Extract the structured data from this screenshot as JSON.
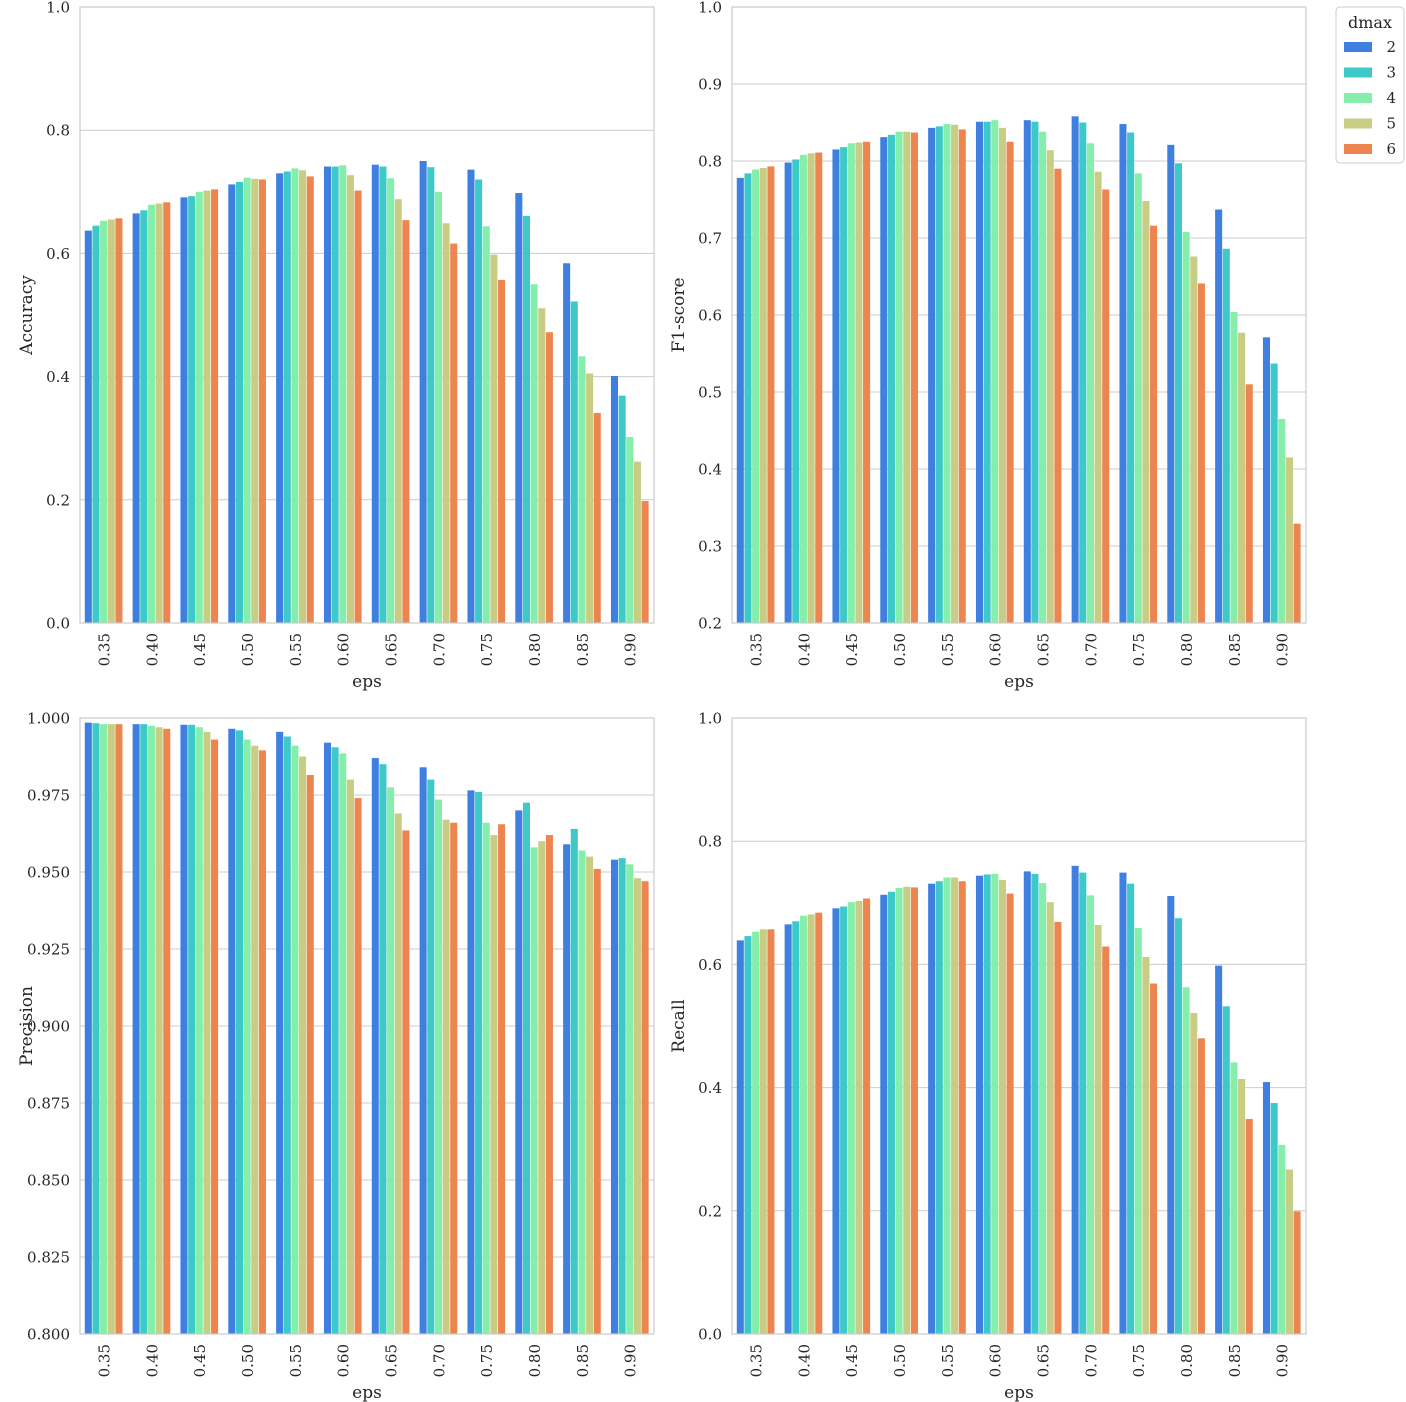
{
  "figure": {
    "legend": {
      "title": "dmax",
      "placement": "outside-upper-right"
    }
  },
  "colors": {
    "series": [
      "#3f7fe0",
      "#3ec9c9",
      "#85eeaa",
      "#c9cd84",
      "#ec8550"
    ],
    "grid": "#cccccc",
    "frame": "#cccccc",
    "text": "#262626"
  },
  "chart_data": [
    {
      "type": "bar",
      "panel": "top-left",
      "xlabel": "eps",
      "ylabel": "Accuracy",
      "ylim": [
        0.0,
        1.0
      ],
      "yticks": [
        "0.0",
        "0.2",
        "0.4",
        "0.6",
        "0.8",
        "1.0"
      ],
      "grid": true,
      "categories": [
        "0.35",
        "0.40",
        "0.45",
        "0.50",
        "0.55",
        "0.60",
        "0.65",
        "0.70",
        "0.75",
        "0.80",
        "0.85",
        "0.90"
      ],
      "series": [
        {
          "name": "2",
          "values": [
            0.637,
            0.665,
            0.691,
            0.712,
            0.73,
            0.741,
            0.744,
            0.75,
            0.736,
            0.698,
            0.584,
            0.401
          ]
        },
        {
          "name": "3",
          "values": [
            0.645,
            0.67,
            0.693,
            0.716,
            0.733,
            0.741,
            0.741,
            0.74,
            0.72,
            0.661,
            0.522,
            0.369
          ]
        },
        {
          "name": "4",
          "values": [
            0.653,
            0.679,
            0.7,
            0.723,
            0.738,
            0.743,
            0.722,
            0.7,
            0.644,
            0.55,
            0.433,
            0.302
          ]
        },
        {
          "name": "5",
          "values": [
            0.655,
            0.681,
            0.702,
            0.721,
            0.735,
            0.727,
            0.688,
            0.649,
            0.598,
            0.511,
            0.405,
            0.262
          ]
        },
        {
          "name": "6",
          "values": [
            0.657,
            0.683,
            0.704,
            0.72,
            0.725,
            0.702,
            0.654,
            0.616,
            0.557,
            0.472,
            0.341,
            0.198
          ]
        }
      ]
    },
    {
      "type": "bar",
      "panel": "top-right",
      "xlabel": "eps",
      "ylabel": "F1-score",
      "ylim": [
        0.2,
        1.0
      ],
      "yticks": [
        "0.2",
        "0.3",
        "0.4",
        "0.5",
        "0.6",
        "0.7",
        "0.8",
        "0.9",
        "1.0"
      ],
      "grid": true,
      "categories": [
        "0.35",
        "0.40",
        "0.45",
        "0.50",
        "0.55",
        "0.60",
        "0.65",
        "0.70",
        "0.75",
        "0.80",
        "0.85",
        "0.90"
      ],
      "series": [
        {
          "name": "2",
          "values": [
            0.778,
            0.798,
            0.815,
            0.831,
            0.843,
            0.851,
            0.853,
            0.858,
            0.848,
            0.821,
            0.737,
            0.571
          ]
        },
        {
          "name": "3",
          "values": [
            0.784,
            0.802,
            0.818,
            0.834,
            0.845,
            0.851,
            0.851,
            0.85,
            0.837,
            0.797,
            0.686,
            0.537
          ]
        },
        {
          "name": "4",
          "values": [
            0.789,
            0.808,
            0.823,
            0.838,
            0.848,
            0.853,
            0.838,
            0.823,
            0.784,
            0.708,
            0.604,
            0.465
          ]
        },
        {
          "name": "5",
          "values": [
            0.791,
            0.81,
            0.824,
            0.838,
            0.847,
            0.843,
            0.814,
            0.786,
            0.748,
            0.676,
            0.577,
            0.415
          ]
        },
        {
          "name": "6",
          "values": [
            0.793,
            0.811,
            0.825,
            0.837,
            0.841,
            0.825,
            0.79,
            0.763,
            0.716,
            0.641,
            0.51,
            0.329
          ]
        }
      ]
    },
    {
      "type": "bar",
      "panel": "bottom-left",
      "xlabel": "eps",
      "ylabel": "Precision",
      "ylim": [
        0.8,
        1.0
      ],
      "yticks": [
        "0.800",
        "0.825",
        "0.850",
        "0.875",
        "0.900",
        "0.925",
        "0.950",
        "0.975",
        "1.000"
      ],
      "grid": true,
      "categories": [
        "0.35",
        "0.40",
        "0.45",
        "0.50",
        "0.55",
        "0.60",
        "0.65",
        "0.70",
        "0.75",
        "0.80",
        "0.85",
        "0.90"
      ],
      "series": [
        {
          "name": "2",
          "values": [
            0.9985,
            0.998,
            0.9978,
            0.9965,
            0.9955,
            0.992,
            0.987,
            0.984,
            0.9765,
            0.97,
            0.959,
            0.954
          ]
        },
        {
          "name": "3",
          "values": [
            0.9983,
            0.998,
            0.9978,
            0.996,
            0.994,
            0.9905,
            0.985,
            0.98,
            0.976,
            0.9725,
            0.964,
            0.9545
          ]
        },
        {
          "name": "4",
          "values": [
            0.998,
            0.9975,
            0.997,
            0.993,
            0.991,
            0.9885,
            0.9775,
            0.9735,
            0.966,
            0.958,
            0.957,
            0.9525
          ]
        },
        {
          "name": "5",
          "values": [
            0.998,
            0.997,
            0.9955,
            0.991,
            0.9875,
            0.98,
            0.969,
            0.967,
            0.962,
            0.96,
            0.955,
            0.948
          ]
        },
        {
          "name": "6",
          "values": [
            0.998,
            0.9965,
            0.993,
            0.9895,
            0.9815,
            0.974,
            0.9635,
            0.966,
            0.9655,
            0.962,
            0.951,
            0.947
          ]
        }
      ]
    },
    {
      "type": "bar",
      "panel": "bottom-right",
      "xlabel": "eps",
      "ylabel": "Recall",
      "ylim": [
        0.0,
        1.0
      ],
      "yticks": [
        "0.0",
        "0.2",
        "0.4",
        "0.6",
        "0.8",
        "1.0"
      ],
      "grid": true,
      "categories": [
        "0.35",
        "0.40",
        "0.45",
        "0.50",
        "0.55",
        "0.60",
        "0.65",
        "0.70",
        "0.75",
        "0.80",
        "0.85",
        "0.90"
      ],
      "series": [
        {
          "name": "2",
          "values": [
            0.639,
            0.665,
            0.691,
            0.713,
            0.731,
            0.744,
            0.751,
            0.76,
            0.749,
            0.711,
            0.598,
            0.409
          ]
        },
        {
          "name": "3",
          "values": [
            0.646,
            0.67,
            0.694,
            0.718,
            0.735,
            0.746,
            0.747,
            0.749,
            0.731,
            0.675,
            0.532,
            0.375
          ]
        },
        {
          "name": "4",
          "values": [
            0.653,
            0.679,
            0.701,
            0.724,
            0.741,
            0.747,
            0.732,
            0.712,
            0.659,
            0.563,
            0.441,
            0.307
          ]
        },
        {
          "name": "5",
          "values": [
            0.657,
            0.681,
            0.703,
            0.726,
            0.741,
            0.737,
            0.701,
            0.664,
            0.612,
            0.521,
            0.414,
            0.267
          ]
        },
        {
          "name": "6",
          "values": [
            0.657,
            0.684,
            0.707,
            0.725,
            0.735,
            0.715,
            0.669,
            0.629,
            0.569,
            0.48,
            0.349,
            0.199
          ]
        }
      ]
    }
  ]
}
